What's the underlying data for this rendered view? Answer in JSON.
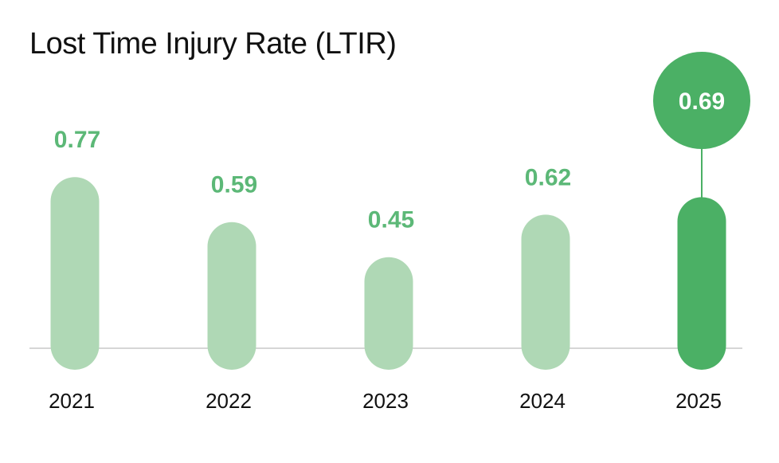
{
  "chart_data": {
    "type": "bar",
    "title": "Lost Time Injury Rate (LTIR)",
    "categories": [
      "2021",
      "2022",
      "2023",
      "2024",
      "2025"
    ],
    "values": [
      0.77,
      0.59,
      0.45,
      0.62,
      0.69
    ],
    "value_labels": [
      "0.77",
      "0.59",
      "0.45",
      "0.62",
      "0.69"
    ],
    "highlight_category": "2025",
    "xlabel": "",
    "ylabel": "",
    "grid": false,
    "legend": "none"
  },
  "colors": {
    "bar": "#afd8b5",
    "bar_highlight": "#4bb065",
    "label": "#5cb877",
    "highlight_label_text": "#ffffff",
    "baseline": "#c8c8c8",
    "title": "#111111",
    "tick": "#111111"
  }
}
